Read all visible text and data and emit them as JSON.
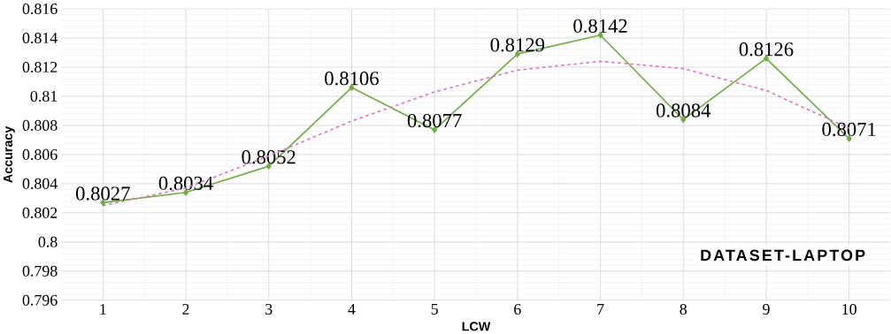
{
  "chart_data": {
    "type": "line",
    "xlabel": "LCW",
    "ylabel": "Accuracy",
    "x": [
      1,
      2,
      3,
      4,
      5,
      6,
      7,
      8,
      9,
      10
    ],
    "xlim": [
      0.5,
      10.5
    ],
    "xticks": [
      1,
      2,
      3,
      4,
      5,
      6,
      7,
      8,
      9,
      10
    ],
    "ylim": [
      0.796,
      0.816
    ],
    "yticks": [
      0.796,
      0.798,
      0.8,
      0.802,
      0.804,
      0.806,
      0.808,
      0.81,
      0.812,
      0.814,
      0.816
    ],
    "grid": true,
    "marker": "diamond",
    "line_style": "solid",
    "series": [
      {
        "color": "#70ad47",
        "values": [
          0.8027,
          0.8034,
          0.8052,
          0.8106,
          0.8077,
          0.8129,
          0.8142,
          0.8084,
          0.8126,
          0.8071
        ],
        "value_labels": [
          "0.8027",
          "0.8034",
          "0.8052",
          "0.8106",
          "0.8077",
          "0.8129",
          "0.8142",
          "0.8084",
          "0.8126",
          "0.8071"
        ]
      },
      {
        "type": "line",
        "color": "#e377c2",
        "marker": "none",
        "line_style": "dashed",
        "x": [
          1,
          2,
          3,
          4,
          5,
          6,
          7,
          8,
          9,
          10
        ],
        "values": [
          0.8025,
          0.8037,
          0.8059,
          0.8083,
          0.8103,
          0.8118,
          0.8124,
          0.8119,
          0.8104,
          0.8078
        ]
      }
    ],
    "annotations": [
      "DATASET-LAPTOP"
    ]
  }
}
